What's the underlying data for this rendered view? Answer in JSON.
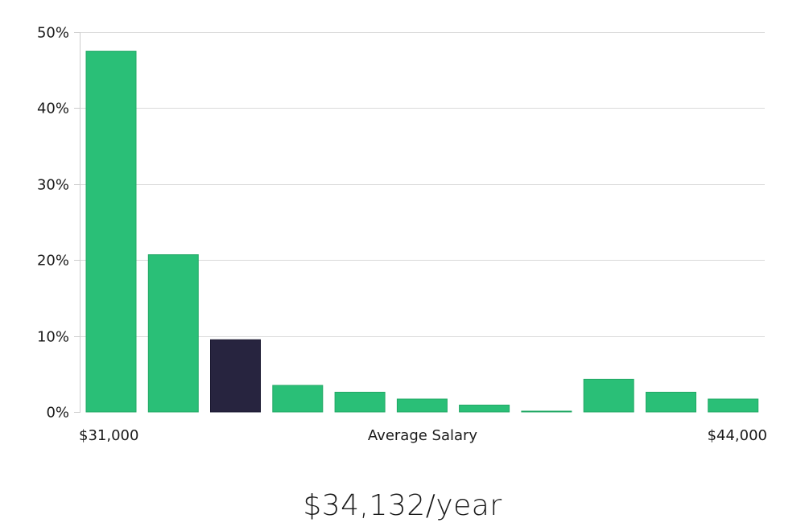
{
  "chart_data": {
    "type": "bar",
    "title": "",
    "xlabel": "Average Salary",
    "ylabel": "",
    "x_range_labels": {
      "min": "$31,000",
      "max": "$44,000"
    },
    "yticks": [
      "0%",
      "10%",
      "20%",
      "30%",
      "40%",
      "50%"
    ],
    "ylim": [
      0,
      50
    ],
    "values": [
      47.5,
      20.7,
      9.5,
      3.5,
      2.6,
      1.7,
      0.9,
      0.1,
      4.3,
      2.6,
      1.7
    ],
    "highlight_index": 2,
    "grid": true,
    "colors": {
      "bar": "#2abf77",
      "bar_edge": "#22a865",
      "highlight": "#27243f",
      "highlight_edge": "#1a1830"
    }
  },
  "salary_caption": "$34,132/year"
}
